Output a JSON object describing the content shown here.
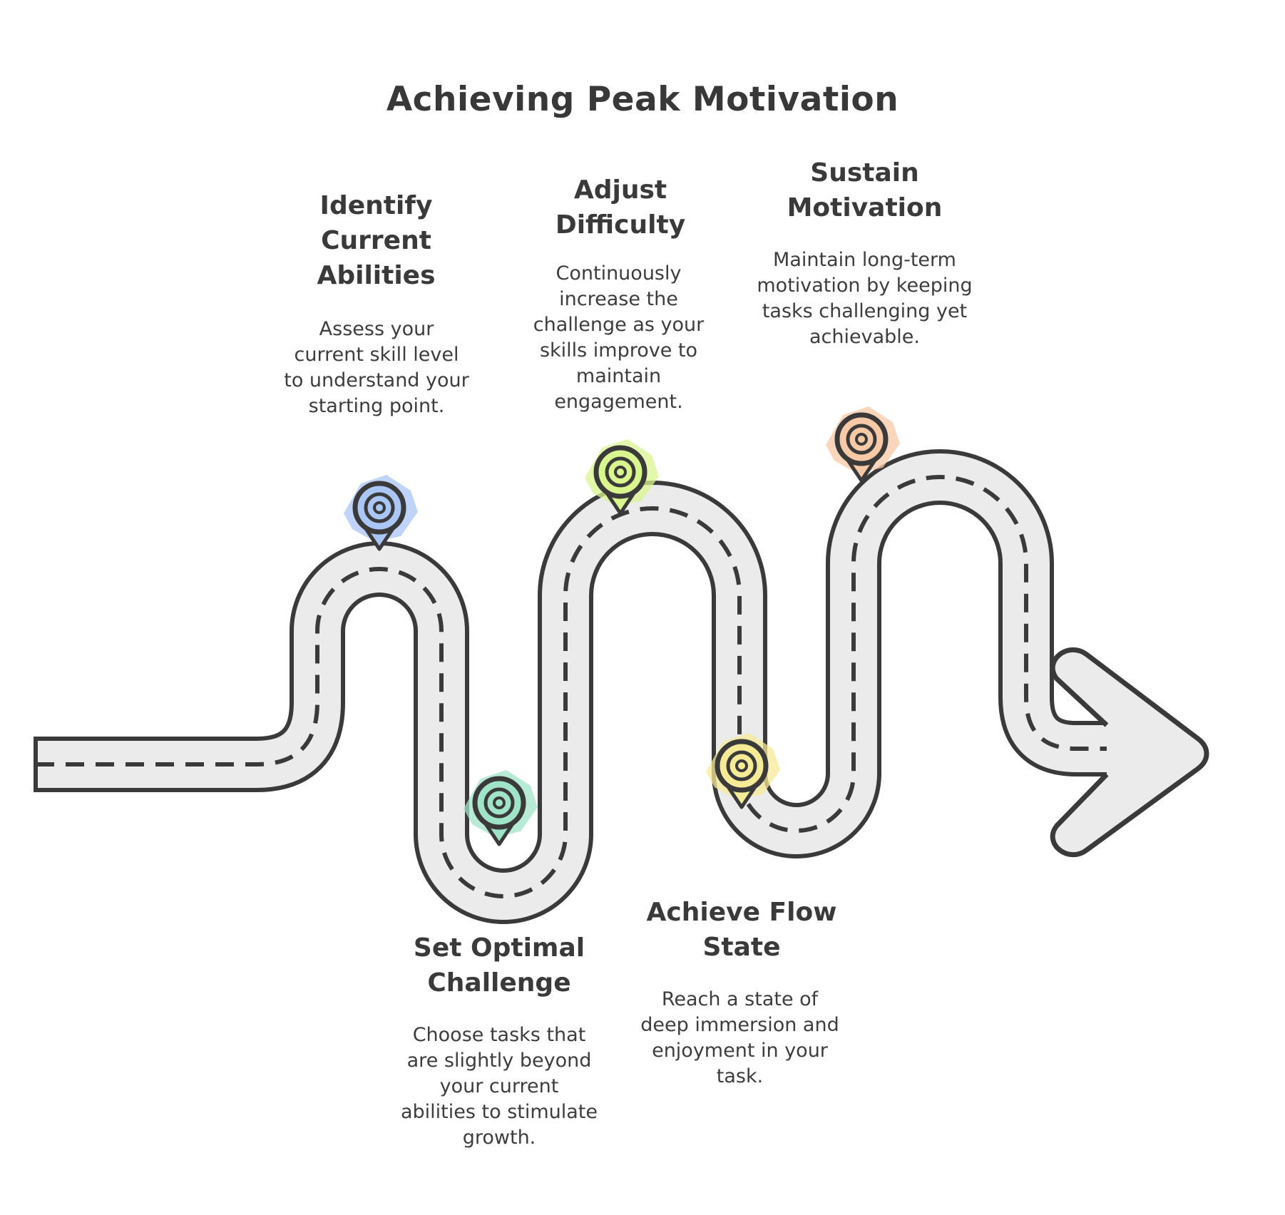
{
  "title": "Achieving Peak Motivation",
  "steps": [
    {
      "title": "Identify Current Abilities",
      "description": "Assess your current skill level to understand your starting point.",
      "color": "#a9c6f5"
    },
    {
      "title": "Set Optimal Challenge",
      "description": "Choose tasks that are slightly beyond your current abilities to stimulate growth.",
      "color": "#9fe4c8"
    },
    {
      "title": "Adjust Difficulty",
      "description": "Continuously increase the challenge as your skills improve to maintain engagement.",
      "color": "#d9f58e"
    },
    {
      "title": "Achieve Flow State",
      "description": "Reach a state of deep immersion and enjoyment in your task.",
      "color": "#f5ea96"
    },
    {
      "title": "Sustain Motivation",
      "description": "Maintain long-term motivation by keeping tasks challenging yet achievable.",
      "color": "#f8c9a5"
    }
  ],
  "road": {
    "fill_color": "#ebebeb",
    "outline_color": "#3a3a3a"
  }
}
